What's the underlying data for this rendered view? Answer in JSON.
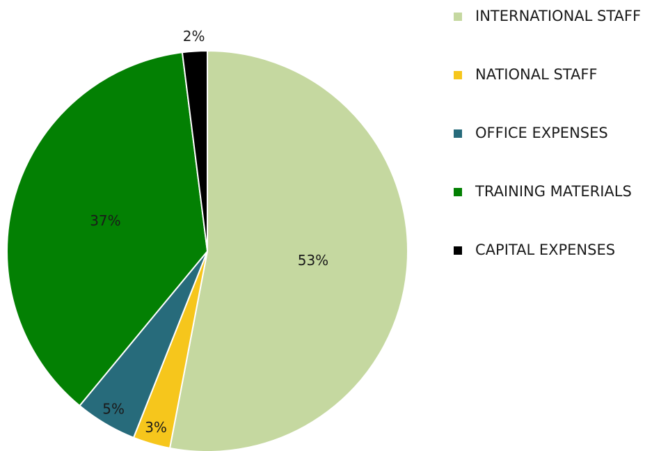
{
  "chart_data": {
    "type": "pie",
    "categories": [
      "INTERNATIONAL STAFF",
      "NATIONAL STAFF",
      "OFFICE EXPENSES",
      "TRAINING MATERIALS",
      "CAPITAL EXPENSES"
    ],
    "values": [
      53,
      3,
      5,
      37,
      2
    ],
    "value_labels": [
      "53%",
      "3%",
      "5%",
      "37%",
      "2%"
    ],
    "colors": [
      "#c5d8a0",
      "#f6c61c",
      "#276b7b",
      "#038003",
      "#000000"
    ],
    "legend": "right"
  }
}
